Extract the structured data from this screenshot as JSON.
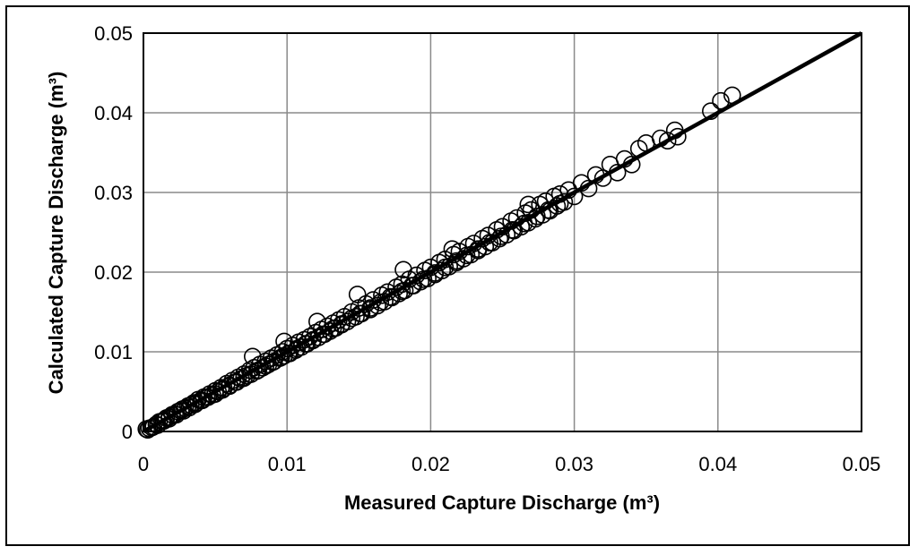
{
  "chart_data": {
    "type": "scatter",
    "title": "",
    "xlabel": "Measured Capture Discharge (m³)",
    "ylabel": "Calculated Capture Discharge (m³)",
    "xlim": [
      0,
      0.05
    ],
    "ylim": [
      0,
      0.05
    ],
    "x_ticks": [
      "0",
      "0.01",
      "0.02",
      "0.03",
      "0.04",
      "0.05"
    ],
    "y_ticks": [
      "0",
      "0.01",
      "0.02",
      "0.03",
      "0.04",
      "0.05"
    ],
    "grid": true,
    "legend": "none",
    "marker": "open-circle",
    "line_of_equality": {
      "x": [
        0,
        0.05
      ],
      "y": [
        0,
        0.05
      ]
    },
    "series": [
      {
        "x": [
          0.0002,
          0.0004,
          0.0007,
          0.0009,
          0.0011,
          0.0013,
          0.0015,
          0.0016,
          0.0018,
          0.002,
          0.0022,
          0.0024,
          0.0026,
          0.0027,
          0.0029,
          0.0031,
          0.0033,
          0.0035,
          0.0037,
          0.0038,
          0.004,
          0.0042,
          0.0044,
          0.0046,
          0.0048,
          0.005,
          0.0052,
          0.0054,
          0.0056,
          0.0058,
          0.006,
          0.0062,
          0.0064,
          0.0066,
          0.0068,
          0.007,
          0.0072,
          0.0074,
          0.0075,
          0.0077,
          0.0079,
          0.0081,
          0.0083,
          0.0085,
          0.0087,
          0.0089,
          0.0091,
          0.0093,
          0.0095,
          0.0097,
          0.0098,
          0.01,
          0.0102,
          0.0104,
          0.0106,
          0.0108,
          0.011,
          0.0112,
          0.0114,
          0.0116,
          0.0118,
          0.012,
          0.0122,
          0.0124,
          0.0126,
          0.0128,
          0.013,
          0.0132,
          0.0134,
          0.0136,
          0.0138,
          0.014,
          0.0142,
          0.0145,
          0.0148,
          0.015,
          0.0152,
          0.0155,
          0.0158,
          0.016,
          0.0163,
          0.0166,
          0.0168,
          0.017,
          0.0173,
          0.0176,
          0.0178,
          0.018,
          0.0182,
          0.0185,
          0.0188,
          0.019,
          0.0193,
          0.0196,
          0.0198,
          0.02,
          0.0203,
          0.0206,
          0.0208,
          0.021,
          0.0213,
          0.0216,
          0.0218,
          0.022,
          0.0223,
          0.0226,
          0.0228,
          0.023,
          0.0233,
          0.0236,
          0.0238,
          0.024,
          0.0243,
          0.0246,
          0.0248,
          0.025,
          0.0253,
          0.0256,
          0.0258,
          0.026,
          0.0263,
          0.0266,
          0.0268,
          0.027,
          0.0273,
          0.0276,
          0.0278,
          0.028,
          0.0283,
          0.0286,
          0.0288,
          0.029,
          0.0293,
          0.0296,
          0.03,
          0.0305,
          0.031,
          0.0315,
          0.032,
          0.0325,
          0.033,
          0.0335,
          0.034,
          0.0345,
          0.035,
          0.036,
          0.0365,
          0.037,
          0.0372,
          0.0395,
          0.0402,
          0.041,
          0.0003,
          0.0006,
          0.001,
          0.0014,
          0.0018,
          0.0023,
          0.0028,
          0.0032,
          0.0036,
          0.0041,
          0.0045,
          0.005,
          0.0055,
          0.006,
          0.0065,
          0.007,
          0.0075,
          0.008,
          0.0085,
          0.009,
          0.0096,
          0.0101,
          0.0107,
          0.0113,
          0.0118,
          0.0125,
          0.0132,
          0.0138,
          0.0145,
          0.0151,
          0.0158,
          0.0165,
          0.0172,
          0.018,
          0.0187,
          0.0195,
          0.0203,
          0.021,
          0.0218,
          0.0225,
          0.0233,
          0.0241,
          0.0249,
          0.0257,
          0.0265,
          0.0274,
          0.0282,
          0.029,
          0.0181,
          0.0149,
          0.0121,
          0.0076,
          0.0098,
          0.0215,
          0.0268
        ],
        "y": [
          0.0003,
          0.0004,
          0.0006,
          0.0009,
          0.0012,
          0.0013,
          0.0014,
          0.0017,
          0.0018,
          0.0021,
          0.0022,
          0.0025,
          0.0026,
          0.0028,
          0.0029,
          0.0032,
          0.0033,
          0.0036,
          0.0036,
          0.004,
          0.0039,
          0.0043,
          0.0043,
          0.0047,
          0.0046,
          0.0051,
          0.005,
          0.0055,
          0.0054,
          0.006,
          0.0058,
          0.0064,
          0.0062,
          0.0068,
          0.0066,
          0.0072,
          0.007,
          0.0077,
          0.0072,
          0.008,
          0.0076,
          0.0084,
          0.008,
          0.0088,
          0.0084,
          0.0092,
          0.0088,
          0.0096,
          0.0092,
          0.01,
          0.0095,
          0.0104,
          0.0098,
          0.0108,
          0.0102,
          0.0112,
          0.0106,
          0.0115,
          0.011,
          0.0119,
          0.0114,
          0.0124,
          0.0118,
          0.0128,
          0.0122,
          0.0132,
          0.0126,
          0.0136,
          0.013,
          0.014,
          0.0134,
          0.0144,
          0.0138,
          0.015,
          0.0144,
          0.0155,
          0.0148,
          0.016,
          0.0153,
          0.0165,
          0.0158,
          0.0171,
          0.0163,
          0.0175,
          0.0168,
          0.0181,
          0.0173,
          0.0185,
          0.0177,
          0.0191,
          0.0183,
          0.0196,
          0.0188,
          0.0202,
          0.0192,
          0.0206,
          0.0197,
          0.0212,
          0.0202,
          0.0216,
          0.0207,
          0.0222,
          0.0212,
          0.0226,
          0.0217,
          0.0232,
          0.0222,
          0.0236,
          0.0227,
          0.0242,
          0.0232,
          0.0246,
          0.0237,
          0.0253,
          0.0242,
          0.0257,
          0.0247,
          0.0264,
          0.0252,
          0.0268,
          0.0257,
          0.0274,
          0.0262,
          0.0278,
          0.0267,
          0.0285,
          0.0272,
          0.0289,
          0.0277,
          0.0295,
          0.0283,
          0.0298,
          0.0288,
          0.0303,
          0.0295,
          0.0312,
          0.0305,
          0.0322,
          0.0318,
          0.0335,
          0.0325,
          0.0342,
          0.0335,
          0.0355,
          0.0362,
          0.0368,
          0.0365,
          0.0378,
          0.037,
          0.0402,
          0.0415,
          0.0422,
          0.0002,
          0.0005,
          0.0008,
          0.0013,
          0.0016,
          0.0021,
          0.0026,
          0.003,
          0.0034,
          0.0039,
          0.0043,
          0.0047,
          0.0052,
          0.0057,
          0.0062,
          0.0067,
          0.0072,
          0.0077,
          0.0082,
          0.0087,
          0.0093,
          0.0098,
          0.0104,
          0.011,
          0.0115,
          0.0122,
          0.0129,
          0.0135,
          0.0142,
          0.0148,
          0.0155,
          0.0162,
          0.0169,
          0.0176,
          0.0183,
          0.0191,
          0.0199,
          0.0206,
          0.0214,
          0.0221,
          0.0229,
          0.0237,
          0.0245,
          0.0253,
          0.0261,
          0.027,
          0.0278,
          0.0286,
          0.0203,
          0.0172,
          0.0138,
          0.0094,
          0.0113,
          0.0229,
          0.0285
        ]
      }
    ]
  }
}
